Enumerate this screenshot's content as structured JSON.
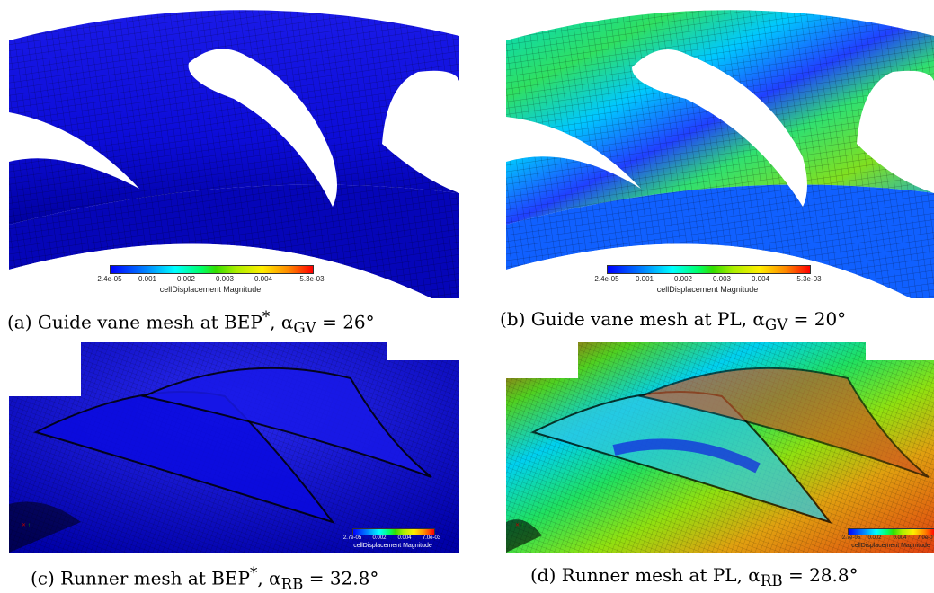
{
  "panels": {
    "a": {
      "caption_prefix": "(a) Guide vane mesh at BEP",
      "caption_sup": "*",
      "caption_sym": ", α",
      "caption_sub": "GV",
      "caption_val": " = 26°",
      "colorbar": {
        "ticks": [
          "2.4e-05",
          "0.001",
          "0.002",
          "0.003",
          "0.004",
          "5.3e-03"
        ],
        "title": "cellDisplacement Magnitude"
      }
    },
    "b": {
      "caption_prefix": "(b) Guide vane mesh at PL",
      "caption_sym": ", α",
      "caption_sub": "GV",
      "caption_val": " = 20°",
      "colorbar": {
        "ticks": [
          "2.4e-05",
          "0.001",
          "0.002",
          "0.003",
          "0.004",
          "5.3e-03"
        ],
        "title": "cellDisplacement Magnitude"
      }
    },
    "c": {
      "caption_prefix": "(c) Runner mesh at BEP",
      "caption_sup": "*",
      "caption_sym": ", α",
      "caption_sub": "RB",
      "caption_val": " = 32.8°",
      "colorbar": {
        "ticks": [
          "2.7e-05",
          "0.002",
          "0.004",
          "7.0e-03"
        ],
        "title": "cellDisplacement Magnitude"
      }
    },
    "d": {
      "caption_prefix": "(d) Runner mesh at PL",
      "caption_sym": ", α",
      "caption_sub": "RB",
      "caption_val": " = 28.8°",
      "colorbar": {
        "ticks": [
          "2.7e-05",
          "0.002",
          "0.004",
          "7.0e-0"
        ],
        "title": "cellDisplacement Magnitude"
      }
    }
  },
  "colors": {
    "low": "#0000ff",
    "mid": "#00ff66",
    "high": "#ff0000",
    "background": "#ffffff"
  }
}
